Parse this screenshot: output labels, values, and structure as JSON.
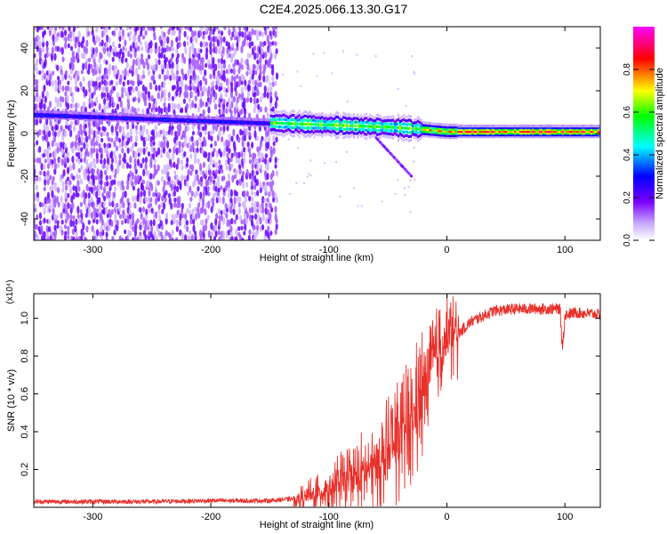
{
  "title": "C2E4.2025.066.13.30.G17",
  "chart_data": [
    {
      "type": "heatmap",
      "title": "C2E4.2025.066.13.30.G17",
      "xlabel": "Height of straight line (km)",
      "ylabel": "Frequency (Hz)",
      "xlim": [
        -350,
        130
      ],
      "ylim": [
        -50,
        50
      ],
      "xticks": [
        -300,
        -200,
        -100,
        0,
        100
      ],
      "yticks": [
        -40,
        -20,
        0,
        20,
        40
      ],
      "xtick_labels": [
        "-300",
        "-200",
        "-100",
        "0",
        "100"
      ],
      "ytick_labels": [
        "-40",
        "-20",
        "0",
        "20",
        "40"
      ],
      "colorbar": {
        "label": "Normalized spectral amplitude",
        "range": [
          0,
          1
        ],
        "ticks": [
          0.0,
          0.2,
          0.4,
          0.6,
          0.8
        ],
        "tick_labels": [
          "0.0",
          "0.2",
          "0.4",
          "0.6",
          "0.8"
        ],
        "colormap": [
          "#ffffff",
          "#7a00ff",
          "#0000ff",
          "#00ffff",
          "#00ff00",
          "#ffff00",
          "#ff0000",
          "#ff00ff"
        ]
      },
      "regions": [
        {
          "name": "noise",
          "x": [
            -350,
            -145
          ],
          "freq_range": [
            -50,
            50
          ],
          "amplitude": 0.1
        },
        {
          "name": "signal_line",
          "x": [
            -150,
            130
          ],
          "freq_center": [
            [
              -150,
              5
            ],
            [
              -100,
              4
            ],
            [
              -50,
              3
            ],
            [
              -20,
              2
            ],
            [
              0,
              1
            ],
            [
              50,
              1
            ],
            [
              130,
              1
            ]
          ],
          "amplitude": 0.7
        },
        {
          "name": "branch",
          "x": [
            -60,
            -30
          ],
          "freq": [
            [
              -60,
              -2
            ],
            [
              -30,
              -20
            ]
          ],
          "amplitude": 0.15
        }
      ]
    },
    {
      "type": "line",
      "xlabel": "Height of straight line (km)",
      "ylabel": "SNR (10 * v/v)",
      "y_multiplier": "(x10⁴)",
      "xlim": [
        -350,
        130
      ],
      "ylim": [
        0,
        1.13
      ],
      "xticks": [
        -300,
        -200,
        -100,
        0,
        100
      ],
      "yticks": [
        0.2,
        0.4,
        0.6,
        0.8,
        1.0
      ],
      "xtick_labels": [
        "-300",
        "-200",
        "-100",
        "0",
        "100"
      ],
      "ytick_labels": [
        "0.2",
        "0.4",
        "0.6",
        "0.8",
        "1.0"
      ],
      "series": [
        {
          "color": "#e8302a",
          "x": [
            -350,
            -300,
            -250,
            -200,
            -150,
            -120,
            -100,
            -80,
            -60,
            -50,
            -40,
            -30,
            -20,
            -10,
            0,
            10,
            20,
            40,
            60,
            80,
            95,
            100,
            110,
            130
          ],
          "y": [
            0.03,
            0.03,
            0.03,
            0.035,
            0.035,
            0.05,
            0.1,
            0.15,
            0.22,
            0.28,
            0.35,
            0.45,
            0.6,
            0.8,
            0.88,
            0.92,
            0.98,
            1.04,
            1.05,
            1.05,
            1.05,
            1.02,
            1.03,
            1.02
          ]
        }
      ]
    }
  ]
}
